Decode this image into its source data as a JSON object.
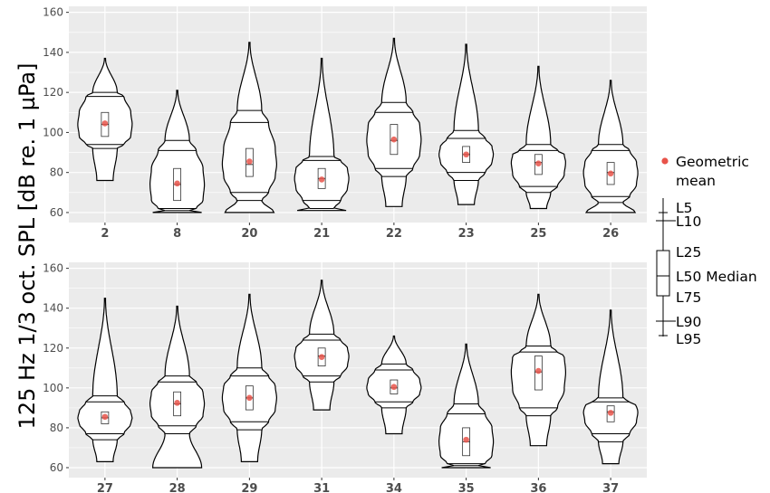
{
  "chart_data": {
    "type": "violin",
    "ylabel": "125 Hz 1/3 oct. SPL [dB re. 1 µPa]",
    "ylim": [
      55,
      163
    ],
    "yticks": [
      60,
      80,
      100,
      120,
      140,
      160
    ],
    "grid": true,
    "legend_position": "right",
    "colors": {
      "panel": "#ebebeb",
      "grid": "#ffffff",
      "mean_point": "#e8534a",
      "outline": "#000000"
    },
    "legend": {
      "point_label_line1": "Geometric",
      "point_label_line2": "mean",
      "l5": "L5",
      "l10": "L10",
      "l25": "L25",
      "l50": "L50 Median",
      "l75": "L75",
      "l90": "L90",
      "l95": "L95"
    },
    "panels": [
      {
        "categories": [
          "2",
          "8",
          "20",
          "21",
          "22",
          "23",
          "25",
          "26"
        ],
        "series": [
          {
            "cat": "2",
            "min": 76,
            "max": 137,
            "L5": 120,
            "L10": 118,
            "L25": 110,
            "L50": 104,
            "L75": 98,
            "L90": 94,
            "L95": 92,
            "mean": 104.5
          },
          {
            "cat": "8",
            "min": 60,
            "max": 121,
            "L5": 96,
            "L10": 91,
            "L25": 82,
            "L50": 74,
            "L75": 66,
            "L90": 62,
            "L95": 61,
            "mean": 74.5
          },
          {
            "cat": "20",
            "min": 60,
            "max": 145,
            "L5": 111,
            "L10": 105,
            "L25": 92,
            "L50": 84,
            "L75": 78,
            "L90": 70,
            "L95": 66,
            "mean": 85.5
          },
          {
            "cat": "21",
            "min": 61,
            "max": 137,
            "L5": 88,
            "L10": 86,
            "L25": 82,
            "L50": 77,
            "L75": 72,
            "L90": 66,
            "L95": 62,
            "mean": 76.5
          },
          {
            "cat": "22",
            "min": 63,
            "max": 147,
            "L5": 115,
            "L10": 110,
            "L25": 104,
            "L50": 96,
            "L75": 89,
            "L90": 82,
            "L95": 78,
            "mean": 96.5
          },
          {
            "cat": "23",
            "min": 64,
            "max": 144,
            "L5": 101,
            "L10": 97,
            "L25": 93,
            "L50": 89,
            "L75": 85,
            "L90": 80,
            "L95": 76,
            "mean": 89
          },
          {
            "cat": "25",
            "min": 62,
            "max": 133,
            "L5": 94,
            "L10": 91,
            "L25": 89,
            "L50": 85,
            "L75": 79,
            "L90": 73,
            "L95": 70,
            "mean": 84.5
          },
          {
            "cat": "26",
            "min": 60,
            "max": 126,
            "L5": 94,
            "L10": 91,
            "L25": 85,
            "L50": 80,
            "L75": 74,
            "L90": 68,
            "L95": 65,
            "mean": 79.5
          }
        ]
      },
      {
        "categories": [
          "27",
          "28",
          "29",
          "31",
          "34",
          "35",
          "36",
          "37"
        ],
        "series": [
          {
            "cat": "27",
            "min": 63,
            "max": 145,
            "L5": 96,
            "L10": 93,
            "L25": 88,
            "L50": 85,
            "L75": 82,
            "L90": 77,
            "L95": 74,
            "mean": 85.5
          },
          {
            "cat": "28",
            "min": 60,
            "max": 141,
            "L5": 106,
            "L10": 103,
            "L25": 98,
            "L50": 92,
            "L75": 86,
            "L90": 81,
            "L95": 77,
            "mean": 92.5
          },
          {
            "cat": "29",
            "min": 63,
            "max": 147,
            "L5": 110,
            "L10": 106,
            "L25": 101,
            "L50": 95,
            "L75": 89,
            "L90": 83,
            "L95": 79,
            "mean": 95
          },
          {
            "cat": "31",
            "min": 89,
            "max": 154,
            "L5": 127,
            "L10": 124,
            "L25": 120,
            "L50": 116,
            "L75": 111,
            "L90": 106,
            "L95": 103,
            "mean": 115.5
          },
          {
            "cat": "34",
            "min": 77,
            "max": 126,
            "L5": 112,
            "L10": 109,
            "L25": 104,
            "L50": 100,
            "L75": 97,
            "L90": 93,
            "L95": 90,
            "mean": 100.5
          },
          {
            "cat": "35",
            "min": 60,
            "max": 122,
            "L5": 92,
            "L10": 87,
            "L25": 80,
            "L50": 73,
            "L75": 66,
            "L90": 62,
            "L95": 61,
            "mean": 74
          },
          {
            "cat": "36",
            "min": 71,
            "max": 147,
            "L5": 121,
            "L10": 118,
            "L25": 116,
            "L50": 108,
            "L75": 99,
            "L90": 90,
            "L95": 86,
            "mean": 108.5
          },
          {
            "cat": "37",
            "min": 62,
            "max": 139,
            "L5": 95,
            "L10": 93,
            "L25": 91,
            "L50": 88,
            "L75": 83,
            "L90": 77,
            "L95": 73,
            "mean": 87.5
          }
        ]
      }
    ]
  }
}
